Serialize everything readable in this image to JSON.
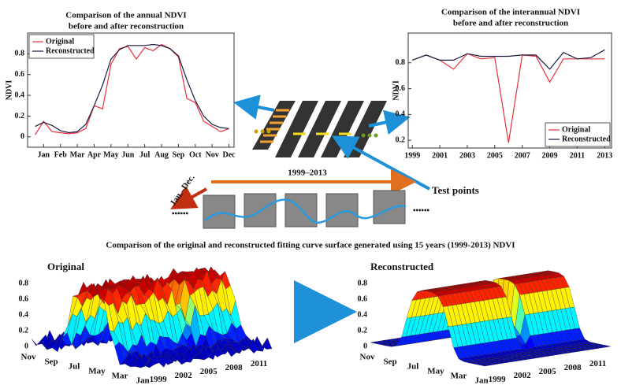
{
  "chart_data": [
    {
      "type": "line",
      "title": [
        "Comparison of the annual NDVI",
        "before and after reconstruction"
      ],
      "ylabel": "NDVI",
      "x": [
        0.5,
        1,
        1.5,
        2,
        2.5,
        3,
        3.5,
        4,
        4.5,
        5,
        5.5,
        6,
        6.5,
        7,
        7.5,
        8,
        8.5,
        9,
        9.5,
        10,
        10.5,
        11,
        11.5,
        12
      ],
      "xlim": [
        0.05,
        12.3
      ],
      "xticks": [
        {
          "value": 1,
          "label": "Jan"
        },
        {
          "value": 2,
          "label": "Feb"
        },
        {
          "value": 3,
          "label": "Mar"
        },
        {
          "value": 4,
          "label": "Apr"
        },
        {
          "value": 5,
          "label": "May"
        },
        {
          "value": 6,
          "label": "Jun"
        },
        {
          "value": 7,
          "label": "Jul"
        },
        {
          "value": 8,
          "label": "Aug"
        },
        {
          "value": 9,
          "label": "Sep"
        },
        {
          "value": 10,
          "label": "Oct"
        },
        {
          "value": 11,
          "label": "Nov"
        },
        {
          "value": 12,
          "label": "Dec"
        }
      ],
      "ylim": [
        -0.1,
        1.0
      ],
      "yticks": [
        0,
        0.2,
        0.4,
        0.6,
        0.8
      ],
      "legend": "upper left",
      "series": [
        {
          "name": "Original",
          "color": "#e8303a",
          "values": [
            0.02,
            0.15,
            0.05,
            0.04,
            0.03,
            0.04,
            0.08,
            0.3,
            0.27,
            0.7,
            0.85,
            0.87,
            0.75,
            0.86,
            0.83,
            0.89,
            0.85,
            0.77,
            0.37,
            0.33,
            0.15,
            0.1,
            0.05,
            0.08
          ]
        },
        {
          "name": "Reconstructed",
          "color": "#1a1a40",
          "values": [
            0.1,
            0.14,
            0.11,
            0.06,
            0.04,
            0.05,
            0.12,
            0.3,
            0.5,
            0.75,
            0.84,
            0.88,
            0.88,
            0.88,
            0.89,
            0.88,
            0.85,
            0.78,
            0.55,
            0.35,
            0.2,
            0.12,
            0.09,
            0.08
          ]
        }
      ]
    },
    {
      "type": "line",
      "title": [
        "Comparison of the interannual NDVI",
        "before and after reconstruction"
      ],
      "ylabel": "NDVI",
      "x": [
        1999,
        2000,
        2001,
        2002,
        2003,
        2004,
        2005,
        2006,
        2007,
        2008,
        2009,
        2010,
        2011,
        2012,
        2013
      ],
      "xlim": [
        1998.7,
        2013.5
      ],
      "xticks": [
        1999,
        2001,
        2003,
        2005,
        2007,
        2009,
        2011,
        2013
      ],
      "ylim": [
        0.14,
        1.03
      ],
      "yticks": [
        0.2,
        0.4,
        0.6,
        0.8
      ],
      "legend": "lower right",
      "series": [
        {
          "name": "Original",
          "color": "#e8303a",
          "values": [
            0.82,
            0.86,
            0.82,
            0.75,
            0.87,
            0.83,
            0.84,
            0.18,
            0.86,
            0.85,
            0.65,
            0.83,
            0.83,
            0.83,
            0.83
          ]
        },
        {
          "name": "Reconstructed",
          "color": "#1a1a40",
          "values": [
            0.82,
            0.86,
            0.82,
            0.82,
            0.87,
            0.85,
            0.85,
            0.85,
            0.86,
            0.86,
            0.75,
            0.88,
            0.83,
            0.84,
            0.9
          ]
        }
      ]
    }
  ],
  "diagram": {
    "period": "1999–2013",
    "season": "Jan.–Dec.",
    "test_points": "Test points",
    "ellipsis": "••••••"
  },
  "surfaces": {
    "title": "Comparison of the original and reconstructed fitting curve surface generated using 15 years (1999-2013) NDVI",
    "panels": [
      {
        "label": "Original"
      },
      {
        "label": "Reconstructed"
      }
    ],
    "zticks": [
      0,
      0.2,
      0.4,
      0.6,
      0.8
    ],
    "month_ticks": [
      "Jan",
      "Mar",
      "May",
      "Jul",
      "Sep",
      "Nov"
    ],
    "year_ticks": [
      1999,
      2002,
      2005,
      2008,
      2011
    ]
  }
}
